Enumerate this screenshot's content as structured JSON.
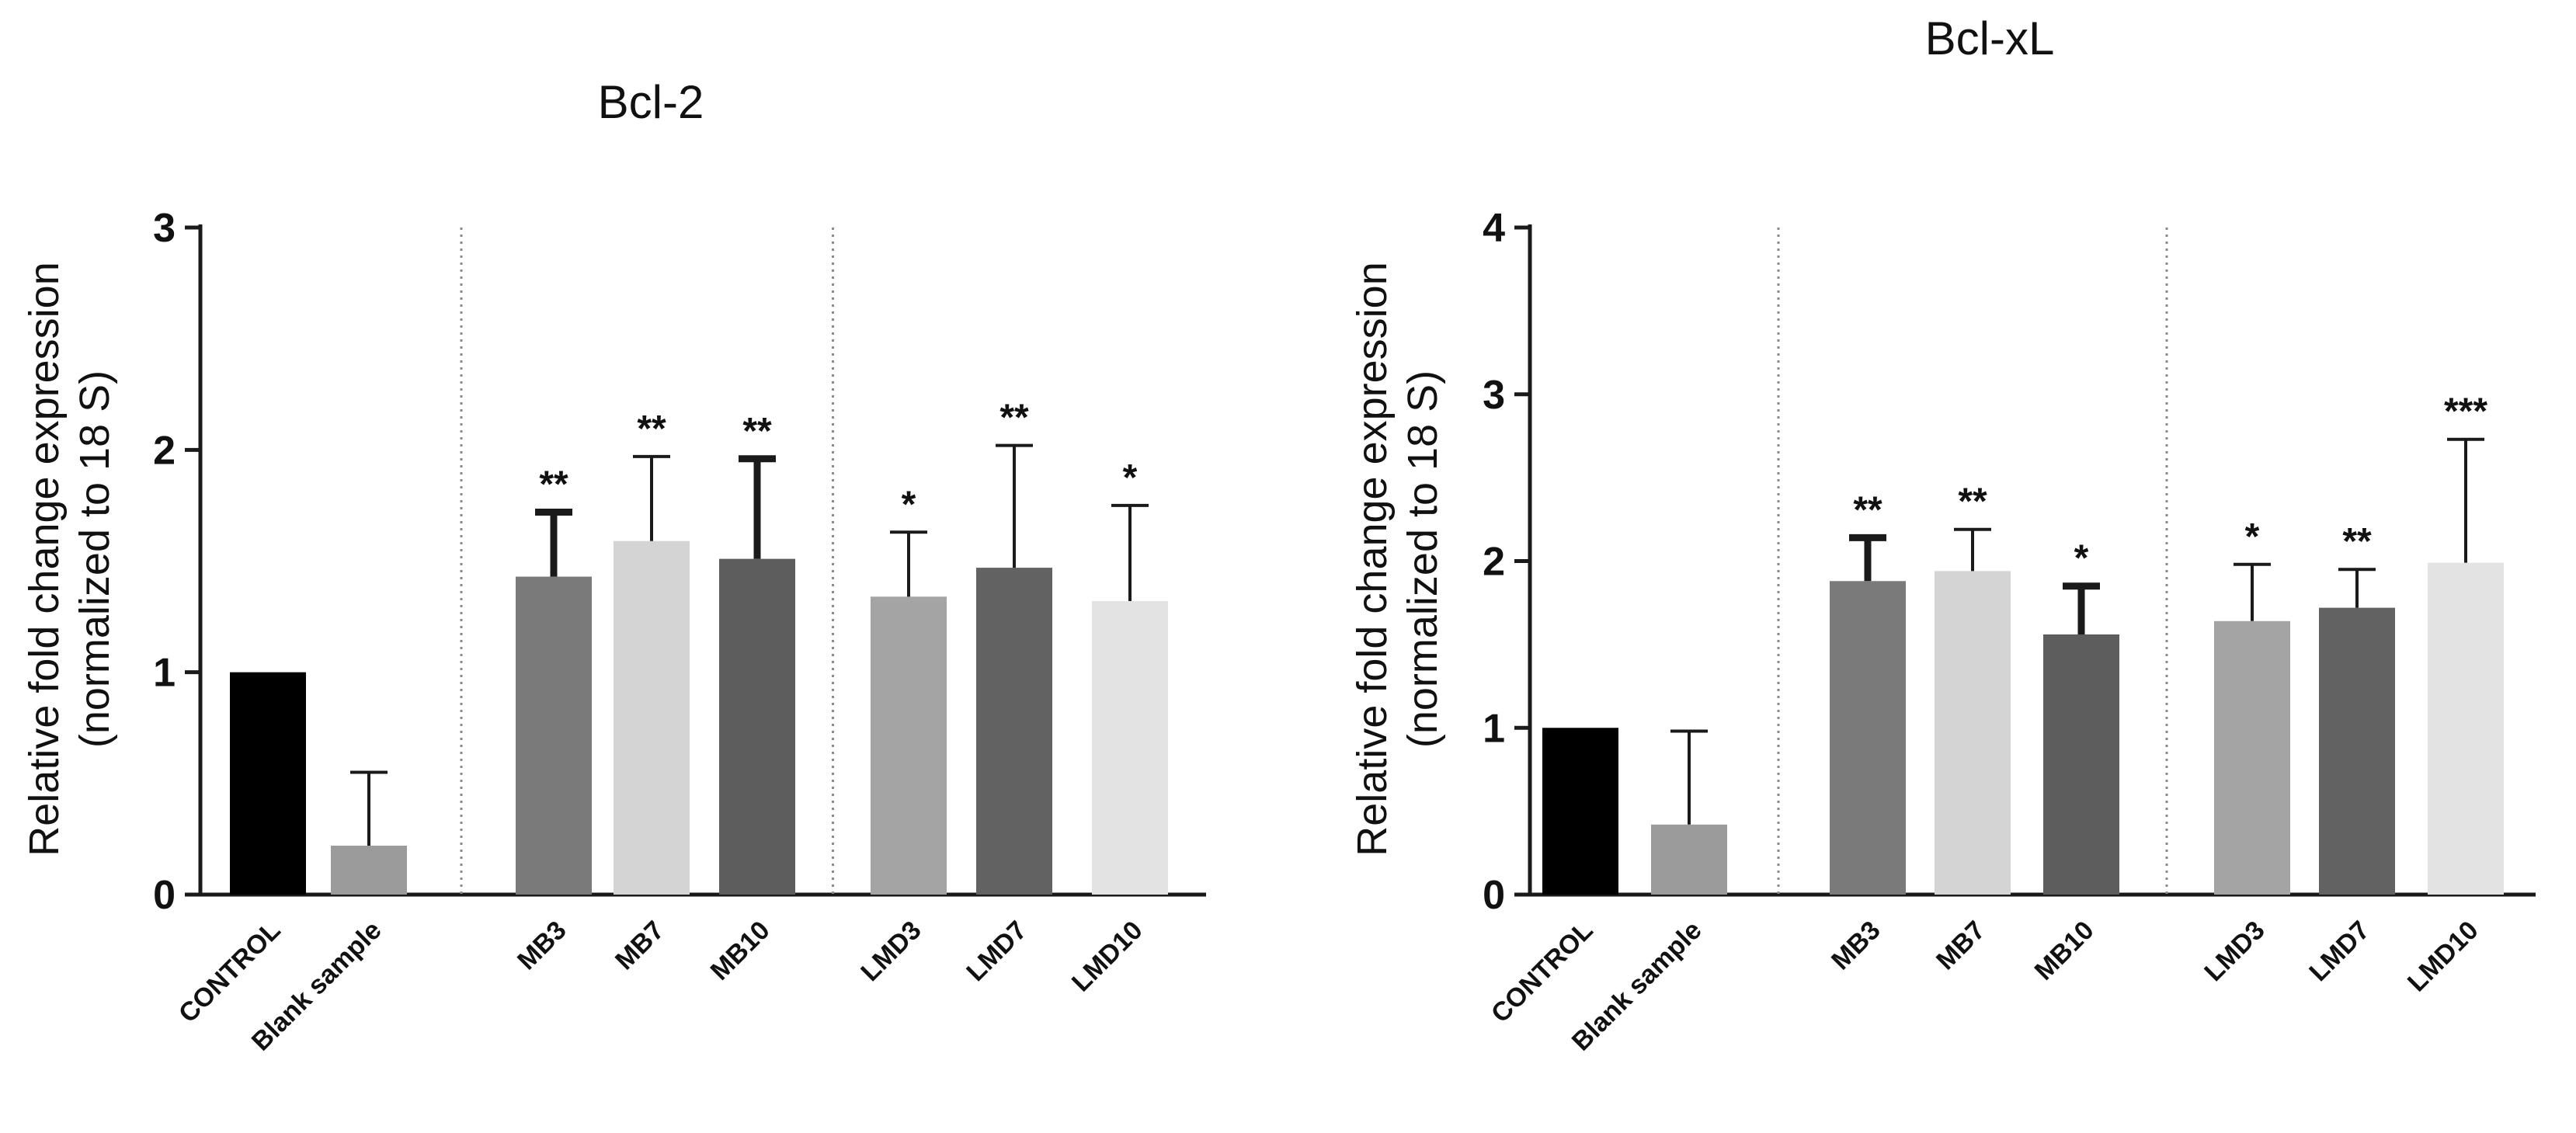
{
  "colors": {
    "axis": "#1a1a1a",
    "errorbar": "#1a1a1a",
    "divider": "#8a8a8a",
    "text": "#111111"
  },
  "chart_data": [
    {
      "type": "bar",
      "title": "Bcl-2",
      "ylabel": [
        "Relative fold change expression",
        "(normalized to 18 S)"
      ],
      "xlabel": "",
      "ylim": [
        0,
        3
      ],
      "yticks": [
        0,
        1,
        2,
        3
      ],
      "grid": false,
      "legend": "none",
      "categories": [
        "CONTROL",
        "Blank sample",
        "MB3",
        "MB7",
        "MB10",
        "LMD3",
        "LMD7",
        "LMD10"
      ],
      "groups_separated_after": [
        1,
        4
      ],
      "values": [
        1.0,
        0.22,
        1.43,
        1.59,
        1.51,
        1.34,
        1.47,
        1.32
      ],
      "error_upper": [
        0.0,
        0.33,
        0.29,
        0.38,
        0.45,
        0.29,
        0.55,
        0.43
      ],
      "error_style": [
        "none",
        "thin",
        "thick",
        "thin",
        "thick",
        "thin",
        "thin",
        "thin"
      ],
      "bar_colors": [
        "#000000",
        "#9b9b9b",
        "#7a7a7a",
        "#d4d4d4",
        "#5d5d5d",
        "#a4a4a4",
        "#626262",
        "#e3e3e3"
      ],
      "significance": [
        "",
        "",
        "**",
        "**",
        "**",
        "*",
        "**",
        "*"
      ]
    },
    {
      "type": "bar",
      "title": "Bcl-xL",
      "ylabel": [
        "Relative fold change expression",
        "(normalized to 18 S)"
      ],
      "xlabel": "",
      "ylim": [
        0,
        4
      ],
      "yticks": [
        0,
        1,
        2,
        3,
        4
      ],
      "grid": false,
      "legend": "none",
      "categories": [
        "CONTROL",
        "Blank sample",
        "MB3",
        "MB7",
        "MB10",
        "LMD3",
        "LMD7",
        "LMD10"
      ],
      "groups_separated_after": [
        1,
        4
      ],
      "values": [
        1.0,
        0.42,
        1.88,
        1.94,
        1.56,
        1.64,
        1.72,
        1.99
      ],
      "error_upper": [
        0.0,
        0.56,
        0.26,
        0.25,
        0.29,
        0.34,
        0.23,
        0.74
      ],
      "error_style": [
        "none",
        "thin",
        "thick",
        "thin",
        "thick",
        "thin",
        "thin",
        "thin"
      ],
      "bar_colors": [
        "#000000",
        "#9b9b9b",
        "#7a7a7a",
        "#d4d4d4",
        "#5d5d5d",
        "#a4a4a4",
        "#626262",
        "#e3e3e3"
      ],
      "significance": [
        "",
        "",
        "**",
        "**",
        "*",
        "*",
        "**",
        "***"
      ]
    }
  ]
}
